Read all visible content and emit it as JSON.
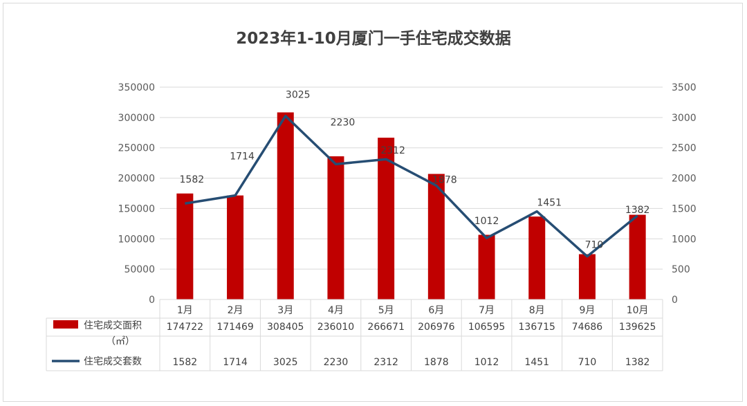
{
  "chart_data": {
    "type": "bar",
    "title": "2023年1-10月厦门一手住宅成交数据",
    "categories": [
      "1月",
      "2月",
      "3月",
      "4月",
      "5月",
      "6月",
      "7月",
      "8月",
      "9月",
      "10月"
    ],
    "series": [
      {
        "name": "住宅成交面积",
        "unit": "（㎡）",
        "type": "bar",
        "axis": "left",
        "color": "#c00000",
        "values": [
          174722,
          171469,
          308405,
          236010,
          266671,
          206976,
          106595,
          136715,
          74686,
          139625
        ]
      },
      {
        "name": "住宅成交套数",
        "type": "line",
        "axis": "right",
        "color": "#264d73",
        "values": [
          1582,
          1714,
          3025,
          2230,
          2312,
          1878,
          1012,
          1451,
          710,
          1382
        ]
      }
    ],
    "y_left": {
      "min": 0,
      "max": 350000,
      "ticks": [
        "0",
        "50000",
        "100000",
        "150000",
        "200000",
        "250000",
        "300000",
        "350000"
      ]
    },
    "y_right": {
      "min": 0,
      "max": 3500,
      "ticks": [
        "0",
        "500",
        "1000",
        "1500",
        "2000",
        "2500",
        "3000",
        "3500"
      ]
    },
    "grid": true,
    "legend": "data-table-bottom"
  }
}
